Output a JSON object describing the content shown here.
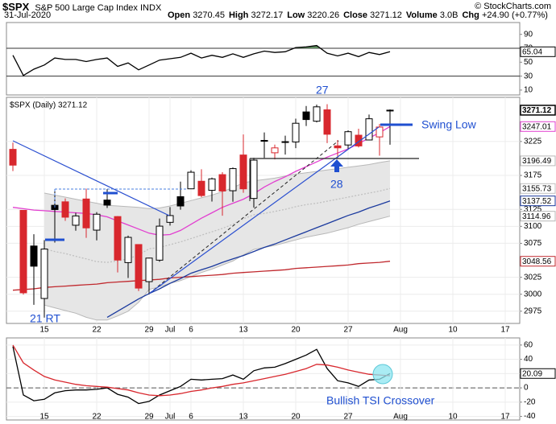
{
  "header": {
    "symbol": "$SPX",
    "name": "S&P 500 Large Cap Index",
    "exchange": "INDX",
    "date": "31-Jul-2020",
    "stats": [
      {
        "label": "Open",
        "value": 3270.45
      },
      {
        "label": "High",
        "value": 3272.17
      },
      {
        "label": "Low",
        "value": 3220.26
      },
      {
        "label": "Close",
        "value": 3271.12
      },
      {
        "label": "Volume",
        "value": "3.0B"
      },
      {
        "label": "Chg",
        "value": "+24.90 (+0.77%)"
      }
    ],
    "credit": "© StockCharts.com"
  },
  "chart_data": [
    {
      "type": "line",
      "series": [
        {
          "color": "#000000",
          "values": [
            60,
            31,
            40,
            46,
            56,
            54,
            54,
            51,
            54,
            56,
            44,
            49,
            39,
            46,
            53,
            55,
            57,
            63,
            56,
            60,
            57,
            62,
            57,
            62,
            66,
            64,
            65,
            71,
            72,
            74,
            63,
            59,
            63,
            58,
            64,
            61,
            65.04
          ]
        }
      ],
      "ylim": [
        3,
        107
      ],
      "yticks": [
        10,
        30,
        50,
        70,
        90
      ],
      "reference_lines": [
        70,
        30
      ],
      "overbought_fill": "#5e8c5e"
    },
    {
      "type": "candlestick",
      "title": "$SPX (Daily) 3271.12",
      "categories": [
        null,
        null,
        null,
        "15",
        null,
        null,
        null,
        null,
        "22",
        null,
        null,
        null,
        null,
        "29",
        null,
        "Jul",
        null,
        "6",
        null,
        null,
        null,
        null,
        "13",
        null,
        null,
        null,
        null,
        "20",
        null,
        null,
        null,
        null,
        "27",
        null,
        null,
        null,
        null,
        "Aug",
        null,
        null,
        null,
        null,
        "10",
        null,
        null,
        null,
        null,
        "17"
      ],
      "open": [
        3213.42,
        3123.53,
        3071.04,
        2993.76,
        3131,
        3136.13,
        3101.64,
        3140.29,
        3094.42,
        3138.7,
        3114.4,
        3046.6,
        3073.2,
        3018.59,
        3050.2,
        3105.92,
        3143.64,
        3155.29,
        3166.44,
        3153.07,
        3176.17,
        3152.47,
        3205.08,
        3141.11,
        3225.98,
        3208.36,
        3224.21,
        3224.29,
        3268.52,
        3254.86,
        3271.64,
        3218.58,
        3219.84,
        3234.27,
        3227.22,
        3231.76,
        3270.45,
        null,
        null,
        null,
        null,
        null,
        null,
        null,
        null,
        null,
        null,
        null
      ],
      "high": [
        3223.27,
        3123.53,
        3088.42,
        3079.76,
        3153.45,
        3141.16,
        3120,
        3155.53,
        3120.92,
        3154.9,
        3115.01,
        3086.25,
        3073.73,
        3053.89,
        3111.51,
        3128.44,
        3165.81,
        3182.59,
        3184.15,
        3171.8,
        3179.78,
        3186.82,
        3235.32,
        3200.95,
        3238.28,
        3220.39,
        3233.52,
        3258.61,
        3277.29,
        3279.32,
        3279.99,
        3227.26,
        3241.43,
        3243.72,
        3264.74,
        3250.92,
        3272.17,
        null,
        null,
        null,
        null,
        null,
        null,
        null,
        null,
        null,
        null,
        null
      ],
      "low": [
        3181.49,
        2999.49,
        2984.47,
        2965.66,
        3076.06,
        3108.03,
        3093.51,
        3083.11,
        3079.39,
        3127.12,
        3032.13,
        3024.01,
        3004.63,
        2999.74,
        3047.83,
        3101.17,
        3124.52,
        3155.29,
        3142.93,
        3136.53,
        3115.7,
        3136.22,
        3149.43,
        3127.66,
        3200.76,
        3198.59,
        3205.65,
        3215.16,
        3247.77,
        3253.1,
        3222.66,
        3200.05,
        3214.25,
        3216.17,
        3227.22,
        3204.13,
        3220.26,
        null,
        null,
        null,
        null,
        null,
        null,
        null,
        null,
        null,
        null,
        null
      ],
      "close": [
        3190.14,
        3002.1,
        3041.31,
        3066.59,
        3124.74,
        3113.49,
        3115.34,
        3097.74,
        3117.86,
        3131.29,
        3050.33,
        3083.76,
        3009.05,
        3053.24,
        3100.29,
        3115.86,
        3130.01,
        3179.72,
        3145.32,
        3169.94,
        3152.05,
        3185.04,
        3155.22,
        3197.52,
        3226.56,
        3215.57,
        3224.73,
        3251.84,
        3257.3,
        3276.02,
        3235.66,
        3215.63,
        3239.41,
        3218.44,
        3258.44,
        3246.22,
        3271.12,
        null,
        null,
        null,
        null,
        null,
        null,
        null,
        null,
        null,
        null,
        null
      ],
      "up_color": "#000000",
      "down_color": "#d8272d",
      "band": {
        "fill": "#e6e6e6",
        "color": "#b8b8b8",
        "upper": [
          null,
          null,
          null,
          3149,
          3146,
          3143,
          3140,
          3137,
          3134,
          3131,
          3130,
          3129,
          3128,
          3126,
          3127,
          3130,
          3134,
          3138,
          3142,
          3146,
          3151,
          3157,
          3164,
          3167,
          3169,
          3171,
          3174,
          3177,
          3179,
          3181,
          3183,
          3185,
          3187,
          3189,
          3191,
          3194,
          3196.49,
          null,
          null,
          null,
          null,
          null,
          null,
          null,
          null,
          null,
          null,
          null
        ],
        "lower": [
          null,
          null,
          null,
          2984,
          2980,
          2976,
          2972,
          2966,
          2962,
          2962,
          2968,
          2975,
          2988,
          3007,
          3011,
          3016,
          3020,
          3026,
          3032,
          3037,
          3043,
          3049,
          3058,
          3066,
          3069,
          3072,
          3076,
          3080,
          3084,
          3087,
          3090,
          3094,
          3098,
          3103,
          3107,
          3111,
          3114.96,
          null,
          null,
          null,
          null,
          null,
          null,
          null,
          null,
          null,
          null,
          null
        ]
      },
      "overlays": [
        {
          "color": "#c0c0c0",
          "dashed": true,
          "values": [
            null,
            null,
            null,
            3067,
            3063,
            3060,
            3056,
            3052,
            3048,
            3047,
            3049,
            3052,
            3058,
            3067,
            3069,
            3073,
            3077,
            3082,
            3087,
            3092,
            3097,
            3103,
            3111,
            3117,
            3119,
            3122,
            3125,
            3129,
            3132,
            3134,
            3137,
            3140,
            3143,
            3146,
            3149,
            3152,
            3155.73,
            null,
            null,
            null,
            null,
            null,
            null,
            null,
            null,
            null,
            null,
            null
          ]
        },
        {
          "color": "#c0282d",
          "dashed": false,
          "values": [
            3006,
            3007,
            3008,
            3010,
            3011,
            3012,
            3013,
            3014,
            3015,
            3017,
            3018,
            3019,
            3020,
            3021,
            3022,
            3024,
            3025,
            3026,
            3027,
            3028,
            3029,
            3031,
            3032,
            3033,
            3034,
            3035,
            3036,
            3038,
            3039,
            3040,
            3041,
            3042,
            3043,
            3045,
            3046,
            3047,
            3048.56,
            null,
            null,
            null,
            null,
            null,
            null,
            null,
            null,
            null,
            null,
            null
          ]
        },
        {
          "color": "#1b3a9e",
          "dashed": false,
          "values": [
            null,
            null,
            null,
            null,
            null,
            null,
            null,
            null,
            null,
            2966,
            2975,
            2984,
            2993,
            3001,
            3008,
            3016,
            3023,
            3031,
            3036,
            3041,
            3047,
            3052,
            3057,
            3063,
            3069,
            3074,
            3080,
            3086,
            3092,
            3098,
            3104,
            3110,
            3116,
            3121,
            3127,
            3132,
            3137.52,
            null,
            null,
            null,
            null,
            null,
            null,
            null,
            null,
            null,
            null,
            null
          ]
        },
        {
          "color": "#e23fd0",
          "dashed": false,
          "values": [
            3128,
            3126,
            3124,
            3123,
            3122,
            3121,
            3120,
            3119,
            3117,
            3114,
            3108,
            3102,
            3096,
            3090,
            3087,
            3088,
            3094,
            3103,
            3112,
            3120,
            3128,
            3134,
            3140,
            3148,
            3158,
            3166,
            3173,
            3181,
            3188,
            3195,
            3202,
            3208,
            3214,
            3222,
            3230,
            3238,
            3247.01,
            null,
            null,
            null,
            null,
            null,
            null,
            null,
            null,
            null,
            null,
            null
          ]
        }
      ],
      "ylim": [
        2957,
        3290
      ],
      "yticks": [
        2975,
        3000,
        3025,
        3075,
        3100,
        3125,
        3175,
        3225
      ],
      "grid": true,
      "annotations": [
        "27",
        "28",
        "Swing Low",
        "21 RT"
      ]
    },
    {
      "type": "line",
      "categories": [
        null,
        null,
        null,
        "15",
        null,
        null,
        null,
        null,
        "22",
        null,
        null,
        null,
        null,
        "29",
        null,
        "Jul",
        null,
        "6",
        null,
        null,
        null,
        null,
        "13",
        null,
        null,
        null,
        null,
        "20",
        null,
        null,
        null,
        null,
        "27",
        null,
        null,
        null,
        null,
        "Aug",
        null,
        null,
        null,
        null,
        "10",
        null,
        null,
        null,
        null,
        "17"
      ],
      "series": [
        {
          "color": "#000000",
          "values": [
            58,
            -10,
            -18,
            -16,
            -7,
            -4,
            -3,
            -3,
            -2,
            0,
            -9,
            -13,
            -22,
            -19,
            -10,
            -4,
            2,
            12,
            11,
            12,
            13,
            18,
            12,
            24,
            28,
            29,
            34,
            40,
            46,
            54,
            27,
            10,
            7,
            2,
            11,
            12,
            20.09,
            null,
            null,
            null,
            null,
            null,
            null,
            null,
            null,
            null,
            null,
            null
          ]
        },
        {
          "color": "#d8272d",
          "values": [
            60,
            35,
            25,
            16,
            11,
            8,
            5,
            3,
            2,
            1,
            -1,
            -3,
            -7,
            -10,
            -11,
            -10,
            -8,
            -5,
            -3,
            0,
            2,
            5,
            7,
            10,
            13,
            16,
            19,
            23,
            27,
            33,
            32,
            29,
            25,
            22,
            19,
            18,
            17,
            null,
            null,
            null,
            null,
            null,
            null,
            null,
            null,
            null,
            null,
            null
          ]
        }
      ],
      "ylim": [
        -45,
        70
      ],
      "yticks": [
        60,
        40,
        20,
        0,
        -20,
        -40
      ],
      "grid": true,
      "zero_line": true,
      "annotations": [
        "Bullish TSI Crossover"
      ]
    }
  ]
}
